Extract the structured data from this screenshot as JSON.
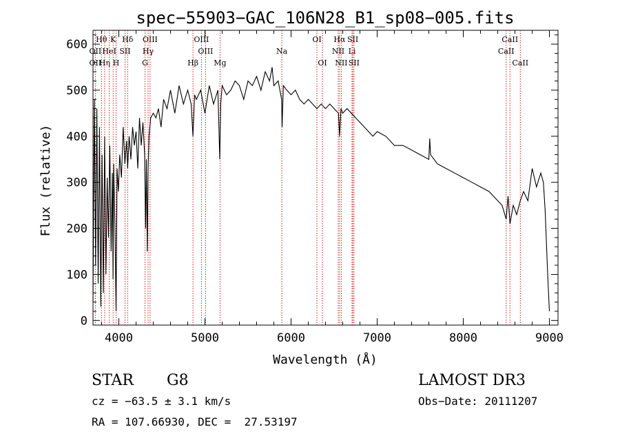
{
  "chart_data": {
    "type": "line",
    "title": "spec−55903−GAC_106N28_B1_sp08−005.fits",
    "xlabel": "Wavelength (Å)",
    "ylabel": "Flux (relative)",
    "xlim": [
      3700,
      9100
    ],
    "ylim": [
      -10,
      630
    ],
    "xticks": [
      4000,
      5000,
      6000,
      7000,
      8000,
      9000
    ],
    "yticks": [
      0,
      100,
      200,
      300,
      400,
      500,
      600
    ],
    "x_minor_step": 200,
    "y_minor_step": 20,
    "grid": false,
    "series": [
      {
        "name": "flux",
        "x": [
          3700,
          3715,
          3730,
          3745,
          3760,
          3775,
          3790,
          3805,
          3820,
          3835,
          3850,
          3865,
          3880,
          3895,
          3910,
          3925,
          3933,
          3940,
          3955,
          3968,
          3980,
          3995,
          4010,
          4030,
          4050,
          4070,
          4090,
          4102,
          4120,
          4140,
          4160,
          4180,
          4200,
          4220,
          4240,
          4260,
          4280,
          4300,
          4310,
          4320,
          4330,
          4340,
          4350,
          4370,
          4400,
          4430,
          4460,
          4490,
          4520,
          4560,
          4600,
          4650,
          4700,
          4750,
          4800,
          4840,
          4861,
          4880,
          4900,
          4950,
          5000,
          5050,
          5100,
          5150,
          5172,
          5183,
          5200,
          5250,
          5300,
          5350,
          5400,
          5450,
          5500,
          5550,
          5600,
          5650,
          5700,
          5750,
          5780,
          5800,
          5850,
          5890,
          5896,
          5910,
          5950,
          6000,
          6050,
          6100,
          6150,
          6200,
          6250,
          6300,
          6350,
          6400,
          6450,
          6500,
          6550,
          6563,
          6580,
          6600,
          6650,
          6700,
          6750,
          6800,
          6850,
          6900,
          6950,
          7000,
          7100,
          7200,
          7300,
          7400,
          7500,
          7600,
          7610,
          7620,
          7700,
          7800,
          7900,
          8000,
          8100,
          8200,
          8300,
          8400,
          8450,
          8498,
          8520,
          8542,
          8580,
          8600,
          8620,
          8662,
          8700,
          8750,
          8800,
          8850,
          8900,
          8930,
          8950,
          8980,
          9000
        ],
        "y": [
          40,
          480,
          120,
          460,
          80,
          420,
          30,
          360,
          60,
          400,
          100,
          310,
          180,
          380,
          150,
          320,
          90,
          340,
          200,
          20,
          330,
          280,
          360,
          310,
          420,
          340,
          390,
          330,
          400,
          350,
          420,
          380,
          410,
          330,
          440,
          380,
          430,
          360,
          200,
          350,
          150,
          330,
          400,
          440,
          450,
          440,
          460,
          420,
          480,
          460,
          500,
          450,
          510,
          470,
          500,
          470,
          400,
          490,
          480,
          500,
          450,
          510,
          470,
          500,
          350,
          470,
          510,
          490,
          500,
          520,
          510,
          480,
          520,
          510,
          530,
          500,
          540,
          520,
          550,
          510,
          520,
          480,
          420,
          510,
          500,
          490,
          500,
          480,
          470,
          480,
          470,
          460,
          470,
          460,
          470,
          460,
          450,
          400,
          460,
          450,
          460,
          450,
          440,
          430,
          420,
          410,
          400,
          410,
          400,
          380,
          380,
          370,
          360,
          350,
          395,
          360,
          340,
          330,
          320,
          310,
          300,
          290,
          280,
          260,
          250,
          220,
          270,
          210,
          250,
          240,
          230,
          260,
          280,
          260,
          330,
          290,
          320,
          300,
          240,
          100,
          20
        ]
      }
    ],
    "line_labels": [
      {
        "name": "Hθ",
        "wave": 3798,
        "row": 1
      },
      {
        "name": "K",
        "wave": 3934,
        "row": 1
      },
      {
        "name": "Hδ",
        "wave": 4102,
        "row": 1
      },
      {
        "name": "OIII",
        "wave": 4363,
        "row": 1
      },
      {
        "name": "OIII",
        "wave": 4959,
        "row": 1
      },
      {
        "name": "OI",
        "wave": 6300,
        "row": 1
      },
      {
        "name": "Hα",
        "wave": 6563,
        "row": 1
      },
      {
        "name": "SII",
        "wave": 6717,
        "row": 1
      },
      {
        "name": "CaII",
        "wave": 8542,
        "row": 1
      },
      {
        "name": "OII",
        "wave": 3727,
        "row": 2
      },
      {
        "name": "HeI",
        "wave": 3889,
        "row": 2
      },
      {
        "name": "SII",
        "wave": 4072,
        "row": 2
      },
      {
        "name": "Hγ",
        "wave": 4340,
        "row": 2
      },
      {
        "name": "OIII",
        "wave": 5007,
        "row": 2
      },
      {
        "name": "Na",
        "wave": 5893,
        "row": 2
      },
      {
        "name": "NII",
        "wave": 6548,
        "row": 2
      },
      {
        "name": "Li",
        "wave": 6708,
        "row": 2
      },
      {
        "name": "CaII",
        "wave": 8498,
        "row": 2
      },
      {
        "name": "OII",
        "wave": 3727,
        "row": 3
      },
      {
        "name": "Hη",
        "wave": 3835,
        "row": 3
      },
      {
        "name": "H",
        "wave": 3968,
        "row": 3
      },
      {
        "name": "G",
        "wave": 4304,
        "row": 3
      },
      {
        "name": "Hβ",
        "wave": 4861,
        "row": 3
      },
      {
        "name": "Mg",
        "wave": 5175,
        "row": 3
      },
      {
        "name": "OI",
        "wave": 6364,
        "row": 3
      },
      {
        "name": "NII",
        "wave": 6583,
        "row": 3
      },
      {
        "name": "SII",
        "wave": 6731,
        "row": 3
      },
      {
        "name": "CaII",
        "wave": 8662,
        "row": 3
      }
    ],
    "line_color": "#000000",
    "marker_color": "#cc0000"
  },
  "footer": {
    "object_class": "STAR",
    "subclass": "G8",
    "survey": "LAMOST DR3",
    "cz": "cz = −63.5 ± 3.1 km/s",
    "obs_date": "Obs−Date: 20111207",
    "coords": "RA = 107.66930, DEC =  27.53197"
  }
}
